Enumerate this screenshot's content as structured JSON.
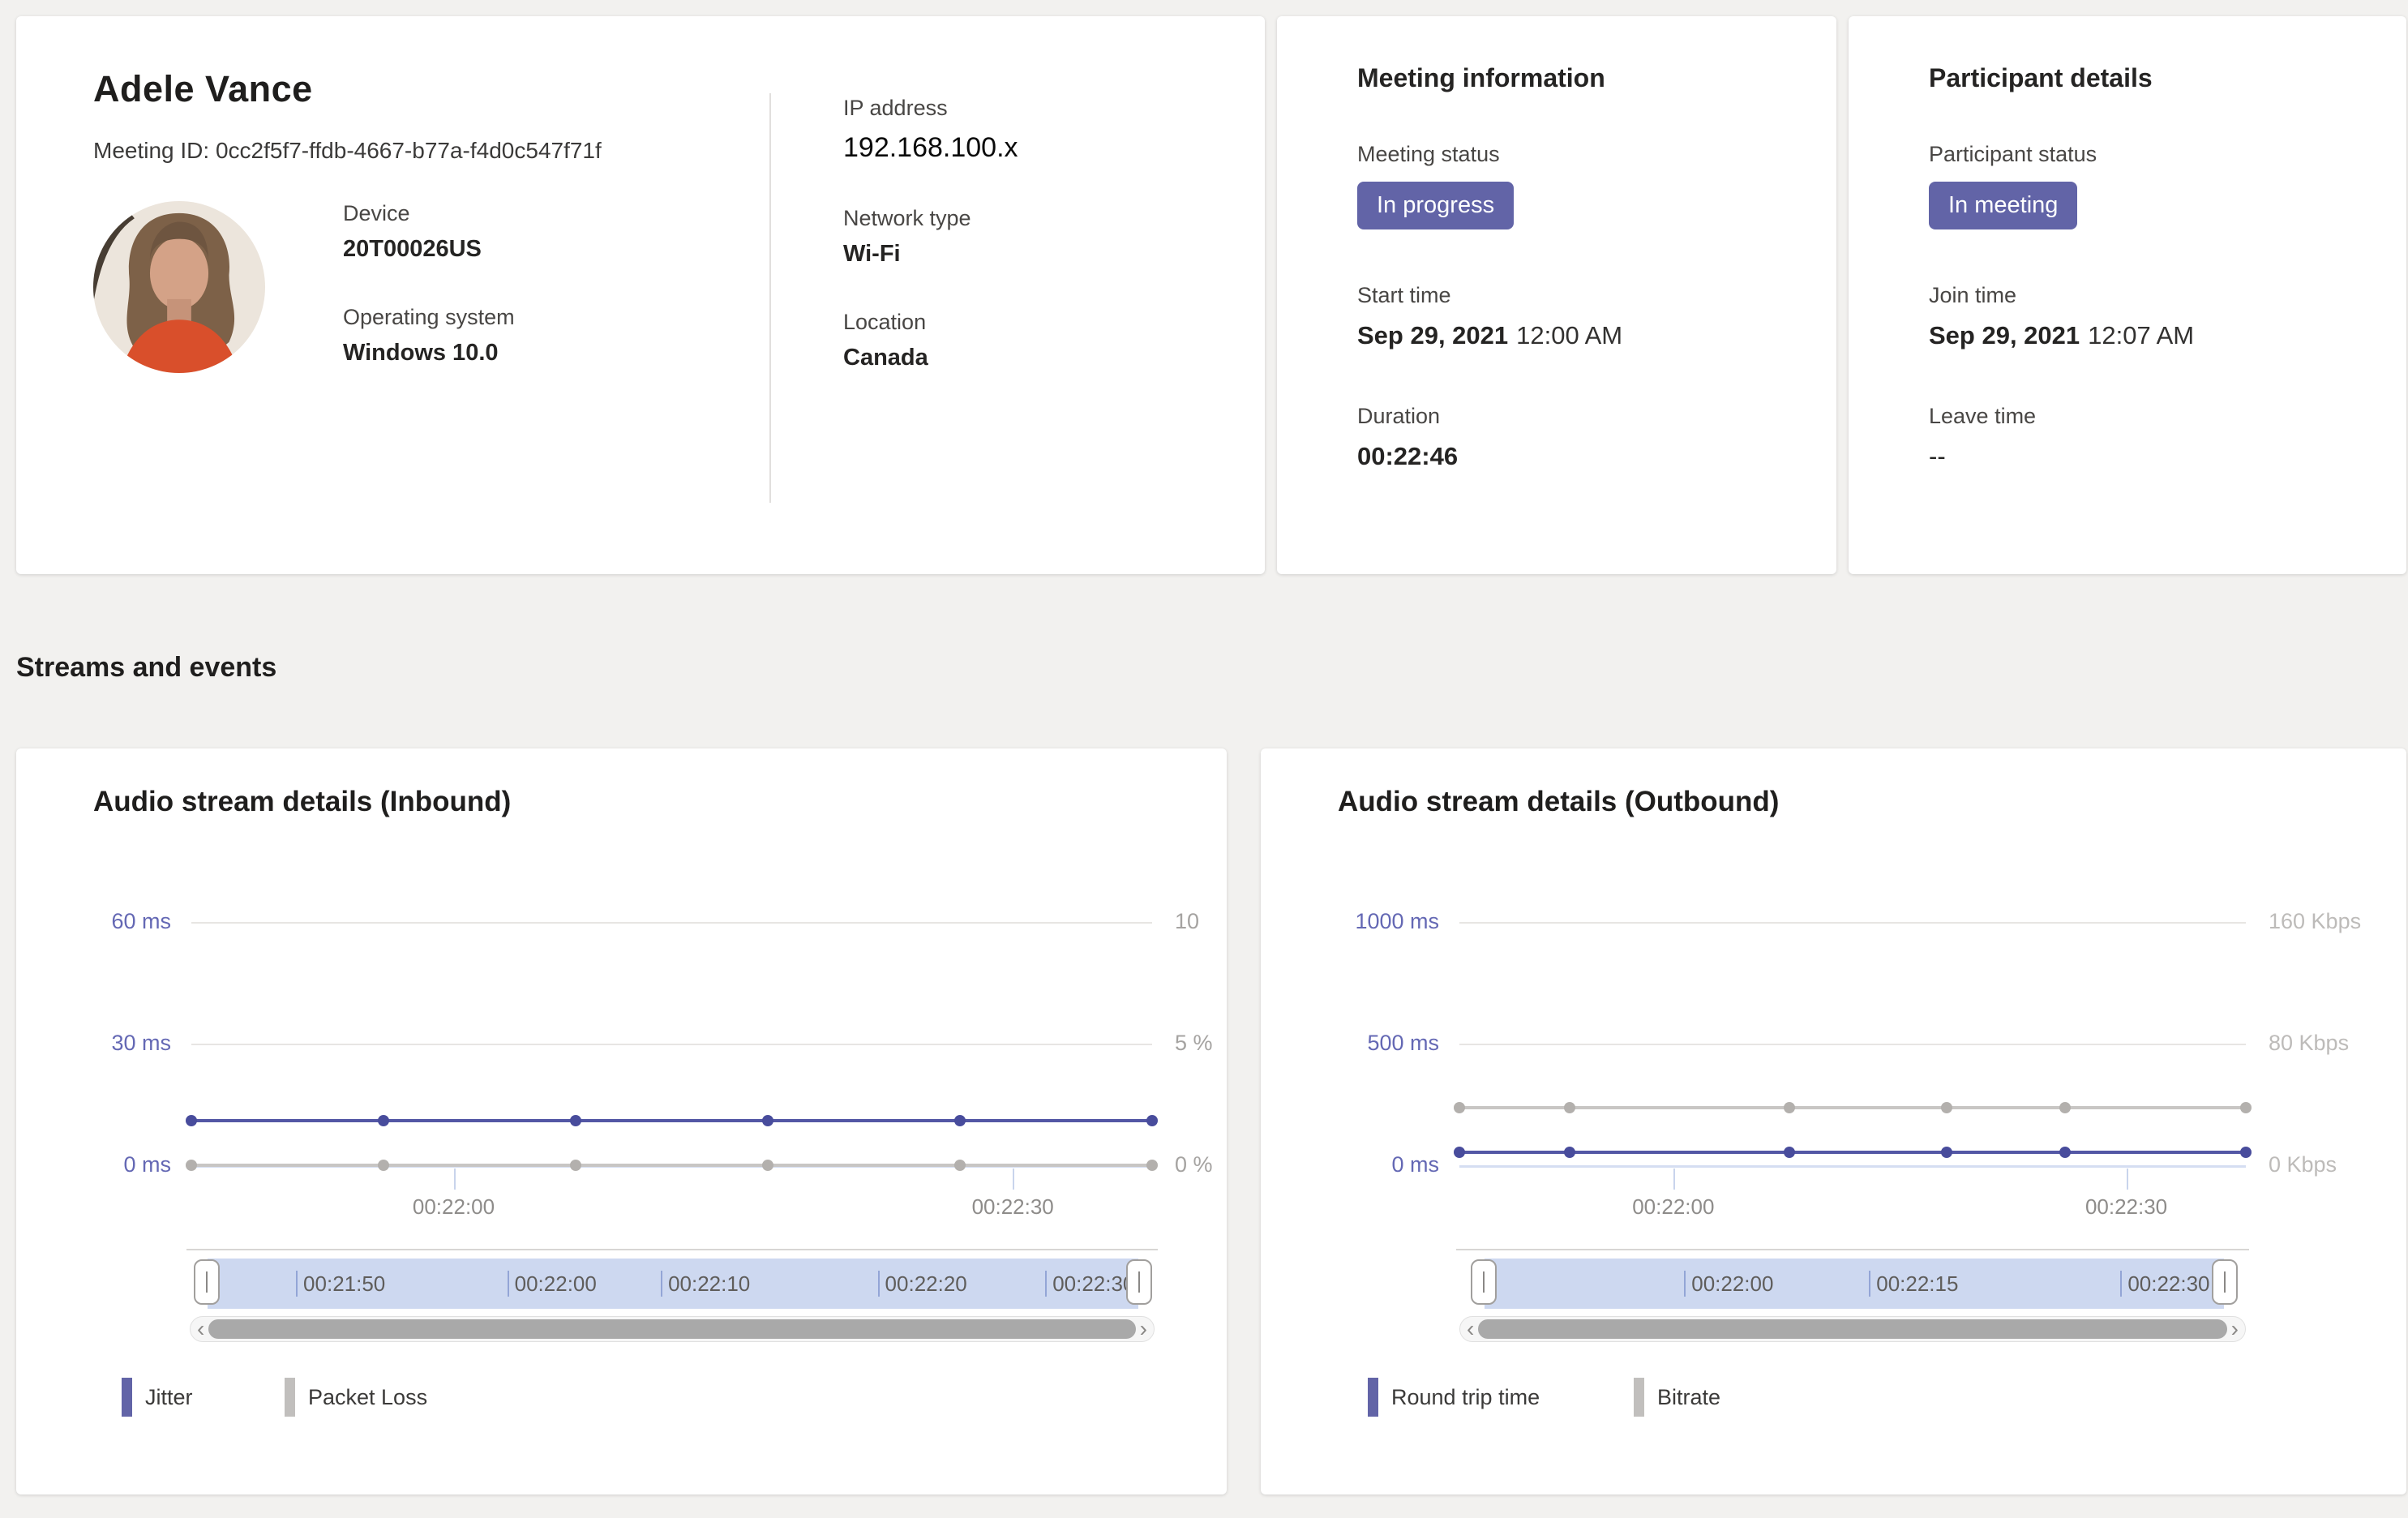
{
  "profile": {
    "name": "Adele Vance",
    "meeting_id": "Meeting ID: 0cc2f5f7-ffdb-4667-b77a-f4d0c547f71f",
    "fields_left": [
      {
        "label": "Device",
        "value": "20T00026US"
      },
      {
        "label": "Operating system",
        "value": "Windows 10.0"
      }
    ],
    "fields_right": [
      {
        "label": "IP address",
        "value": "192.168.100.x"
      },
      {
        "label": "Network type",
        "value": "Wi-Fi"
      },
      {
        "label": "Location",
        "value": "Canada"
      }
    ]
  },
  "meeting_info": {
    "title": "Meeting information",
    "status_label": "Meeting status",
    "status_badge": "In progress",
    "start_label": "Start time",
    "start_date": "Sep 29, 2021",
    "start_time": "12:00 AM",
    "duration_label": "Duration",
    "duration_value": "00:22:46"
  },
  "participant": {
    "title": "Participant details",
    "status_label": "Participant status",
    "status_badge": "In meeting",
    "join_label": "Join time",
    "join_date": "Sep 29, 2021",
    "join_time": "12:07 AM",
    "leave_label": "Leave time",
    "leave_value": "--"
  },
  "section_heading": "Streams and events",
  "colors": {
    "accent_purple": "#6264a7",
    "jitter_line": "#5357a5",
    "gray_line": "#c8c6c4",
    "slider_band": "#cdd8f0",
    "card_background": "#ffffff",
    "page_background": "#f2f1ef"
  },
  "icons": {
    "scroll_left": "‹",
    "scroll_right": "›"
  },
  "chart_data": [
    {
      "type": "line",
      "title": "Audio stream details (Inbound)",
      "left_axis": {
        "unit": "ms",
        "max": 60,
        "tick_labels": [
          "60 ms",
          "30 ms",
          "0 ms"
        ],
        "label_color": "#6468b4"
      },
      "right_axis": {
        "unit": "%",
        "max": 10,
        "tick_labels": [
          "10",
          "5 %",
          "0 %"
        ],
        "label_color": "#a5a3a1"
      },
      "x_ticks": [
        {
          "label": "00:22:00",
          "pos": 0.273
        },
        {
          "label": "00:22:30",
          "pos": 0.855
        }
      ],
      "series": [
        {
          "name": "Jitter",
          "axis": "left",
          "unit": "ms",
          "color": "#5357a5",
          "dot_color": "#484c9c",
          "values": [
            11,
            11,
            11,
            11,
            11,
            11
          ],
          "dot_pos": [
            0,
            0.2,
            0.4,
            0.6,
            0.8,
            1
          ]
        },
        {
          "name": "Packet Loss",
          "axis": "right",
          "unit": "%",
          "color": "#c8c6c4",
          "dot_color": "#b3b0ad",
          "values": [
            0,
            0,
            0,
            0,
            0,
            0
          ],
          "dot_pos": [
            0,
            0.2,
            0.4,
            0.6,
            0.8,
            1
          ]
        }
      ],
      "time_window": {
        "labels": [
          {
            "label": "00:21:50",
            "pos": 0.095
          },
          {
            "label": "00:22:00",
            "pos": 0.322
          },
          {
            "label": "00:22:10",
            "pos": 0.487
          },
          {
            "label": "00:22:20",
            "pos": 0.72
          },
          {
            "label": "00:22:30",
            "pos": 0.9
          }
        ]
      },
      "legend": [
        {
          "label": "Jitter",
          "color": "#6264a7"
        },
        {
          "label": "Packet Loss",
          "color": "#c1bfbd"
        }
      ]
    },
    {
      "type": "line",
      "title": "Audio stream details (Outbound)",
      "left_axis": {
        "unit": "ms",
        "max": 1000,
        "tick_labels": [
          "1000 ms",
          "500 ms",
          "0 ms"
        ],
        "label_color": "#6468b4"
      },
      "right_axis": {
        "unit": "Kbps",
        "max": 160,
        "tick_labels": [
          "160 Kbps",
          "80 Kbps",
          "0 Kbps"
        ],
        "label_color": "#bdbbb9"
      },
      "x_ticks": [
        {
          "label": "00:22:00",
          "pos": 0.272
        },
        {
          "label": "00:22:30",
          "pos": 0.848
        }
      ],
      "series": [
        {
          "name": "Round trip time",
          "axis": "left",
          "unit": "ms",
          "color": "#5357a5",
          "dot_color": "#484c9c",
          "values": [
            55,
            55,
            55,
            55,
            55,
            55
          ],
          "dot_pos": [
            0,
            0.14,
            0.42,
            0.62,
            0.77,
            1
          ]
        },
        {
          "name": "Bitrate",
          "axis": "right",
          "unit": "Kbps",
          "color": "#c8c6c4",
          "dot_color": "#b3b0ad",
          "values": [
            38,
            38,
            38,
            38,
            38,
            38
          ],
          "dot_pos": [
            0,
            0.14,
            0.42,
            0.62,
            0.77,
            1
          ]
        }
      ],
      "time_window": {
        "labels": [
          {
            "label": "00:22:00",
            "pos": 0.27
          },
          {
            "label": "00:22:15",
            "pos": 0.52
          },
          {
            "label": "00:22:30",
            "pos": 0.86
          }
        ]
      },
      "legend": [
        {
          "label": "Round trip time",
          "color": "#6264a7"
        },
        {
          "label": "Bitrate",
          "color": "#c1bfbd"
        }
      ]
    }
  ]
}
